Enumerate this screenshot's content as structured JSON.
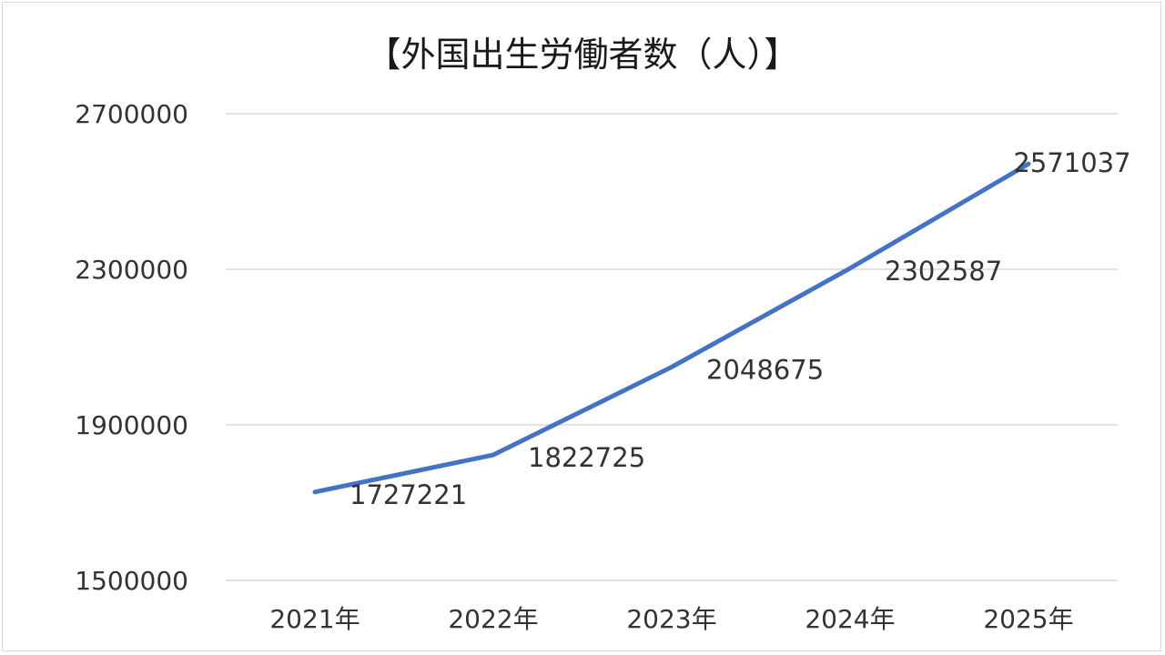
{
  "chart_data": {
    "type": "line",
    "title": "【外国出生労働者数（人）】",
    "xlabel": "",
    "ylabel": "",
    "categories": [
      "2021年",
      "2022年",
      "2023年",
      "2024年",
      "2025年"
    ],
    "values": [
      1727221,
      1822725,
      2048675,
      2302587,
      2571037
    ],
    "data_labels": [
      "1727221",
      "1822725",
      "2048675",
      "2302587",
      "2571037"
    ],
    "ylim": [
      1500000,
      2700000
    ],
    "yticks": [
      "1500000",
      "1900000",
      "2300000",
      "2700000"
    ],
    "grid": true,
    "legend": "none",
    "line_color": "#4472c4"
  }
}
